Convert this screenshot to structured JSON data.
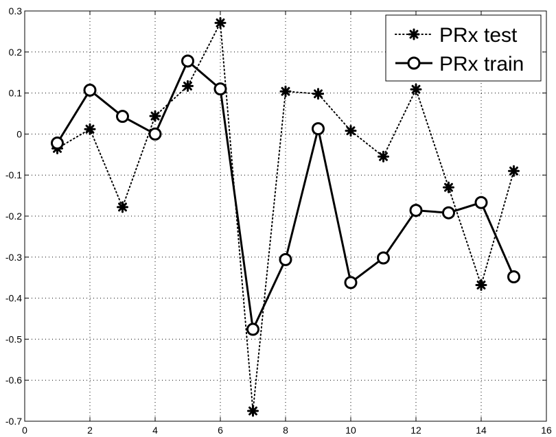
{
  "chart_data": {
    "type": "line",
    "title": "",
    "xlabel": "",
    "ylabel": "",
    "xlim": [
      0,
      16
    ],
    "ylim": [
      -0.7,
      0.3
    ],
    "x_ticks": [
      0,
      2,
      4,
      6,
      8,
      10,
      12,
      14,
      16
    ],
    "y_ticks": [
      0.3,
      0.2,
      0.1,
      0,
      -0.1,
      -0.2,
      -0.3,
      -0.4,
      -0.5,
      -0.6,
      -0.7
    ],
    "x_tick_labels": [
      "0",
      "2",
      "4",
      "6",
      "8",
      "10",
      "12",
      "14",
      "16"
    ],
    "y_tick_labels": [
      "0.3",
      "0.2",
      "0.1",
      "0",
      "-0.1",
      "-0.2",
      "-0.3",
      "-0.4",
      "-0.5",
      "-0.6",
      "-0.7"
    ],
    "grid": true,
    "legend_position": "top-right",
    "x": [
      1,
      2,
      3,
      4,
      5,
      6,
      7,
      8,
      9,
      10,
      11,
      12,
      13,
      14,
      15
    ],
    "series": [
      {
        "name": "PRx test",
        "style": "dotted",
        "marker": "asterisk",
        "color": "#000000",
        "values": [
          -0.035,
          0.012,
          -0.178,
          0.044,
          0.117,
          0.271,
          -0.675,
          0.104,
          0.098,
          0.008,
          -0.055,
          0.109,
          -0.13,
          -0.368,
          -0.09
        ]
      },
      {
        "name": "PRx train",
        "style": "solid",
        "marker": "circle",
        "color": "#000000",
        "values": [
          -0.022,
          0.107,
          0.043,
          0.0,
          0.178,
          0.11,
          -0.476,
          -0.306,
          0.013,
          -0.362,
          -0.302,
          -0.186,
          -0.192,
          -0.167,
          -0.348
        ]
      }
    ]
  }
}
